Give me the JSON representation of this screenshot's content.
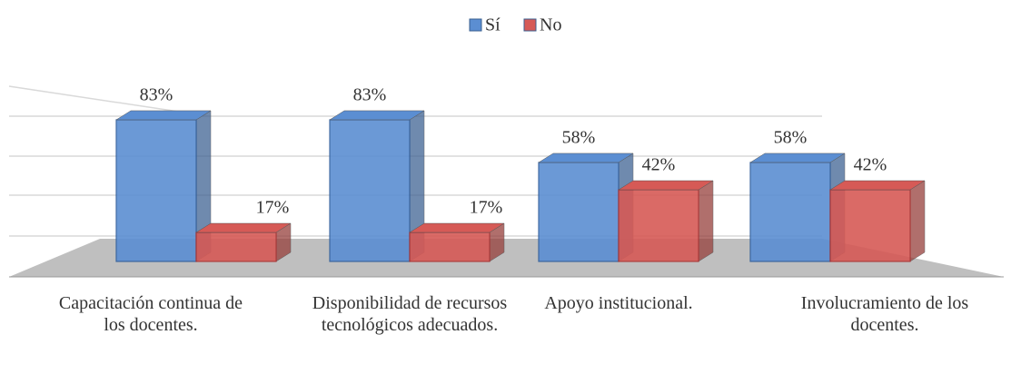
{
  "chart_data": {
    "type": "bar",
    "categories": [
      "Capacitación continua de los docentes.",
      "Disponibilidad de recursos tecnológicos adecuados.",
      "Apoyo institucional.",
      "Involucramiento de los docentes."
    ],
    "series": [
      {
        "name": "Sí",
        "color": "#5b8ed2",
        "values": [
          83,
          83,
          58,
          58
        ],
        "value_labels": [
          "83%",
          "83%",
          "58%",
          "58%"
        ]
      },
      {
        "name": "No",
        "color": "#d65a56",
        "values": [
          17,
          17,
          42,
          42
        ],
        "value_labels": [
          "17%",
          "17%",
          "42%",
          "42%"
        ]
      }
    ],
    "ylim": [
      0,
      100
    ],
    "legend": "top"
  }
}
